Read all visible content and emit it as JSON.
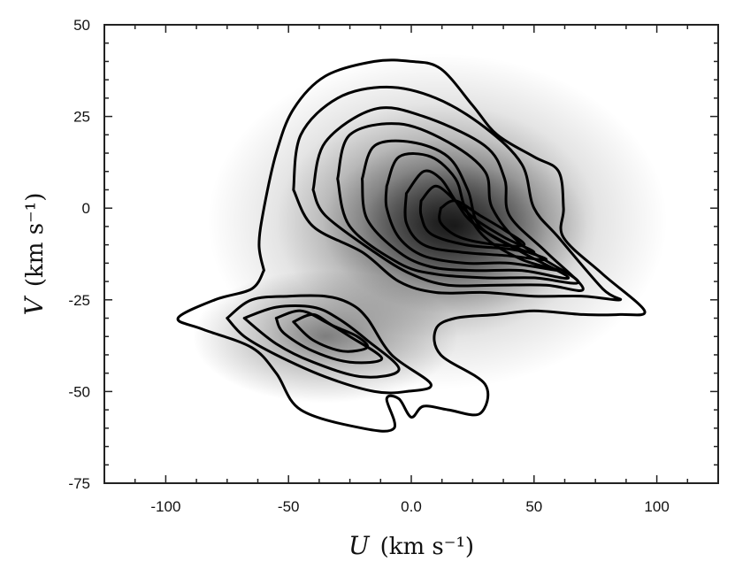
{
  "chart_data": {
    "type": "heatmap",
    "subtype": "density-with-contours",
    "title": "",
    "xlabel": "U",
    "xlabel_unit": "(km s⁻¹)",
    "ylabel": "V",
    "ylabel_unit": "(km s⁻¹)",
    "xlim": [
      -125,
      125
    ],
    "ylim": [
      -75,
      50
    ],
    "x_ticks": [
      -100,
      -50,
      0,
      50,
      100
    ],
    "x_tick_labels": [
      "-100",
      "-50",
      "0.0",
      "50",
      "100"
    ],
    "y_ticks": [
      50,
      25,
      0,
      -25,
      -50,
      -75
    ],
    "y_tick_labels": [
      "50",
      "25",
      "0",
      "-25",
      "-50",
      "-75"
    ],
    "grid": false,
    "colormap": "greys",
    "components": [
      {
        "center": [
          25,
          -6
        ],
        "peak": 0.95
      },
      {
        "center": [
          -35,
          -35
        ],
        "peak": 0.6
      }
    ],
    "contours": {
      "upper_lobe": [
        [
          [
            -60,
            -17
          ],
          [
            -62,
            -10
          ],
          [
            -60,
            0
          ],
          [
            -55,
            15
          ],
          [
            -48,
            27
          ],
          [
            -35,
            36
          ],
          [
            -15,
            40
          ],
          [
            0,
            40
          ],
          [
            12,
            38
          ],
          [
            25,
            28
          ],
          [
            35,
            20
          ],
          [
            50,
            14
          ],
          [
            60,
            10
          ],
          [
            62,
            0
          ],
          [
            62,
            -8
          ],
          [
            78,
            -18
          ],
          [
            95,
            -28
          ],
          [
            85,
            -29
          ],
          [
            70,
            -29
          ],
          [
            50,
            -28
          ],
          [
            35,
            -29
          ],
          [
            18,
            -30
          ],
          [
            10,
            -33
          ],
          [
            12,
            -40
          ],
          [
            30,
            -48
          ],
          [
            28,
            -56
          ],
          [
            15,
            -55
          ],
          [
            5,
            -54
          ],
          [
            0,
            -57
          ],
          [
            -5,
            -52
          ],
          [
            -10,
            -52
          ],
          [
            -7,
            -60
          ],
          [
            -20,
            -60
          ],
          [
            -45,
            -55
          ],
          [
            -55,
            -45
          ],
          [
            -65,
            -38
          ],
          [
            -85,
            -33
          ],
          [
            -95,
            -30
          ],
          [
            -80,
            -25
          ],
          [
            -65,
            -22
          ],
          [
            -60,
            -17
          ]
        ],
        [
          [
            -48,
            5
          ],
          [
            -45,
            20
          ],
          [
            -30,
            30
          ],
          [
            -10,
            33
          ],
          [
            10,
            30
          ],
          [
            30,
            22
          ],
          [
            45,
            12
          ],
          [
            50,
            0
          ],
          [
            60,
            -8
          ],
          [
            78,
            -22
          ],
          [
            85,
            -25
          ],
          [
            70,
            -24
          ],
          [
            50,
            -24
          ],
          [
            30,
            -23
          ],
          [
            10,
            -23
          ],
          [
            -5,
            -20
          ],
          [
            -20,
            -12
          ],
          [
            -40,
            -5
          ],
          [
            -48,
            5
          ]
        ],
        [
          [
            -40,
            5
          ],
          [
            -35,
            18
          ],
          [
            -15,
            27
          ],
          [
            5,
            25
          ],
          [
            30,
            17
          ],
          [
            38,
            8
          ],
          [
            40,
            -2
          ],
          [
            55,
            -12
          ],
          [
            70,
            -22
          ],
          [
            55,
            -21
          ],
          [
            35,
            -21
          ],
          [
            15,
            -21
          ],
          [
            0,
            -18
          ],
          [
            -15,
            -12
          ],
          [
            -35,
            -2
          ],
          [
            -40,
            5
          ]
        ],
        [
          [
            -30,
            8
          ],
          [
            -25,
            20
          ],
          [
            -5,
            23
          ],
          [
            15,
            18
          ],
          [
            30,
            10
          ],
          [
            33,
            0
          ],
          [
            45,
            -10
          ],
          [
            68,
            -20
          ],
          [
            50,
            -19
          ],
          [
            30,
            -19
          ],
          [
            10,
            -18
          ],
          [
            -5,
            -15
          ],
          [
            -25,
            -5
          ],
          [
            -30,
            8
          ]
        ],
        [
          [
            -20,
            8
          ],
          [
            -15,
            17
          ],
          [
            0,
            18
          ],
          [
            15,
            14
          ],
          [
            23,
            5
          ],
          [
            28,
            -5
          ],
          [
            45,
            -12
          ],
          [
            64,
            -19
          ],
          [
            45,
            -17
          ],
          [
            25,
            -17
          ],
          [
            8,
            -16
          ],
          [
            -5,
            -12
          ],
          [
            -18,
            -3
          ],
          [
            -20,
            8
          ]
        ],
        [
          [
            -10,
            6
          ],
          [
            -5,
            14
          ],
          [
            8,
            14
          ],
          [
            18,
            8
          ],
          [
            22,
            0
          ],
          [
            30,
            -8
          ],
          [
            45,
            -14
          ],
          [
            60,
            -17
          ],
          [
            40,
            -15
          ],
          [
            22,
            -15
          ],
          [
            5,
            -13
          ],
          [
            -5,
            -8
          ],
          [
            -10,
            0
          ],
          [
            -10,
            6
          ]
        ],
        [
          [
            -2,
            4
          ],
          [
            5,
            10
          ],
          [
            12,
            8
          ],
          [
            18,
            2
          ],
          [
            25,
            -4
          ],
          [
            40,
            -10
          ],
          [
            55,
            -14
          ],
          [
            40,
            -13
          ],
          [
            20,
            -12
          ],
          [
            5,
            -10
          ],
          [
            -2,
            -4
          ],
          [
            -2,
            4
          ]
        ],
        [
          [
            4,
            2
          ],
          [
            10,
            6
          ],
          [
            18,
            2
          ],
          [
            26,
            -3
          ],
          [
            38,
            -8
          ],
          [
            50,
            -12
          ],
          [
            38,
            -11
          ],
          [
            22,
            -10
          ],
          [
            8,
            -7
          ],
          [
            4,
            -2
          ],
          [
            4,
            2
          ]
        ],
        [
          [
            12,
            0
          ],
          [
            18,
            2
          ],
          [
            28,
            -2
          ],
          [
            38,
            -6
          ],
          [
            46,
            -10
          ],
          [
            35,
            -10
          ],
          [
            20,
            -8
          ],
          [
            12,
            -4
          ],
          [
            12,
            0
          ]
        ]
      ],
      "lower_lobe": [
        [
          [
            -75,
            -30
          ],
          [
            -65,
            -25
          ],
          [
            -50,
            -24
          ],
          [
            -35,
            -24
          ],
          [
            -25,
            -26
          ],
          [
            -18,
            -30
          ],
          [
            -8,
            -40
          ],
          [
            8,
            -48
          ],
          [
            -2,
            -50
          ],
          [
            -15,
            -50
          ],
          [
            -35,
            -46
          ],
          [
            -55,
            -40
          ],
          [
            -68,
            -35
          ],
          [
            -75,
            -30
          ]
        ],
        [
          [
            -68,
            -30
          ],
          [
            -55,
            -27
          ],
          [
            -40,
            -27
          ],
          [
            -30,
            -30
          ],
          [
            -18,
            -36
          ],
          [
            -5,
            -44
          ],
          [
            -20,
            -46
          ],
          [
            -40,
            -42
          ],
          [
            -55,
            -37
          ],
          [
            -68,
            -30
          ]
        ],
        [
          [
            -55,
            -30
          ],
          [
            -45,
            -28
          ],
          [
            -35,
            -31
          ],
          [
            -25,
            -35
          ],
          [
            -12,
            -41
          ],
          [
            -25,
            -42
          ],
          [
            -40,
            -39
          ],
          [
            -52,
            -34
          ],
          [
            -55,
            -30
          ]
        ],
        [
          [
            -48,
            -31
          ],
          [
            -40,
            -29
          ],
          [
            -32,
            -32
          ],
          [
            -22,
            -35
          ],
          [
            -18,
            -38
          ],
          [
            -28,
            -39
          ],
          [
            -40,
            -36
          ],
          [
            -48,
            -31
          ]
        ]
      ]
    }
  }
}
